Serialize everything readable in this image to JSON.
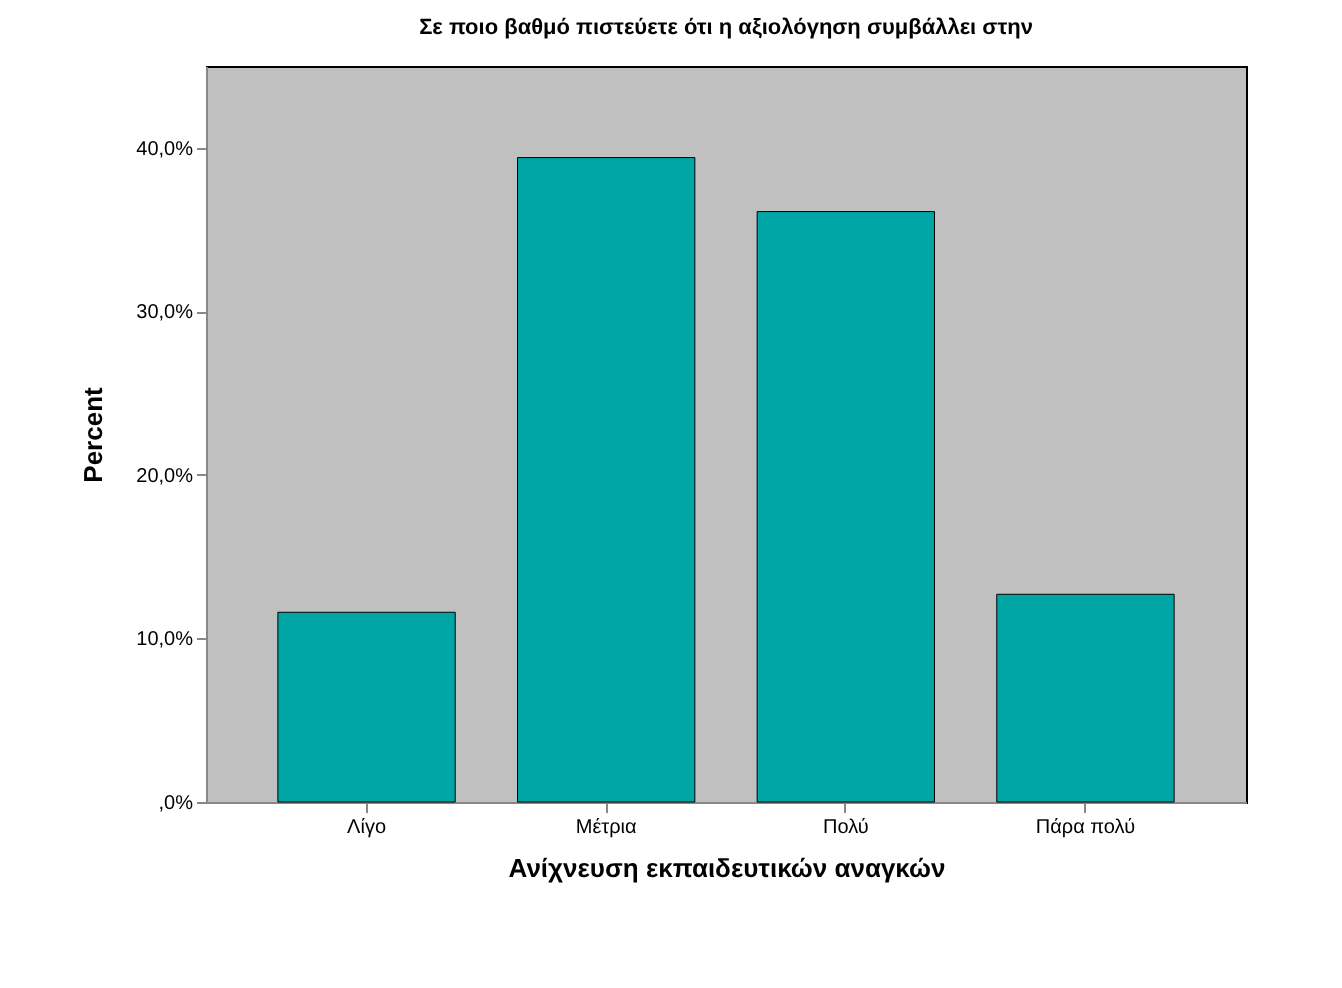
{
  "chart_data": {
    "type": "bar",
    "title": "Σε ποιο βαθμό πιστεύετε ότι η αξιολόγηση συμβάλλει στην",
    "xlabel": "Ανίχνευση εκπαιδευτικών αναγκών",
    "ylabel": "Percent",
    "categories": [
      "Λίγο",
      "Μέτρια",
      "Πολύ",
      "Πάρα πολύ"
    ],
    "values": [
      11.6,
      39.4,
      36.1,
      12.7
    ],
    "color": "#00a5a5",
    "ylim": [
      0,
      45
    ],
    "yticks": [
      {
        "value": 0,
        "label": ",0%"
      },
      {
        "value": 10,
        "label": "10,0%"
      },
      {
        "value": 20,
        "label": "20,0%"
      },
      {
        "value": 30,
        "label": "30,0%"
      },
      {
        "value": 40,
        "label": "40,0%"
      }
    ],
    "grid": false
  }
}
